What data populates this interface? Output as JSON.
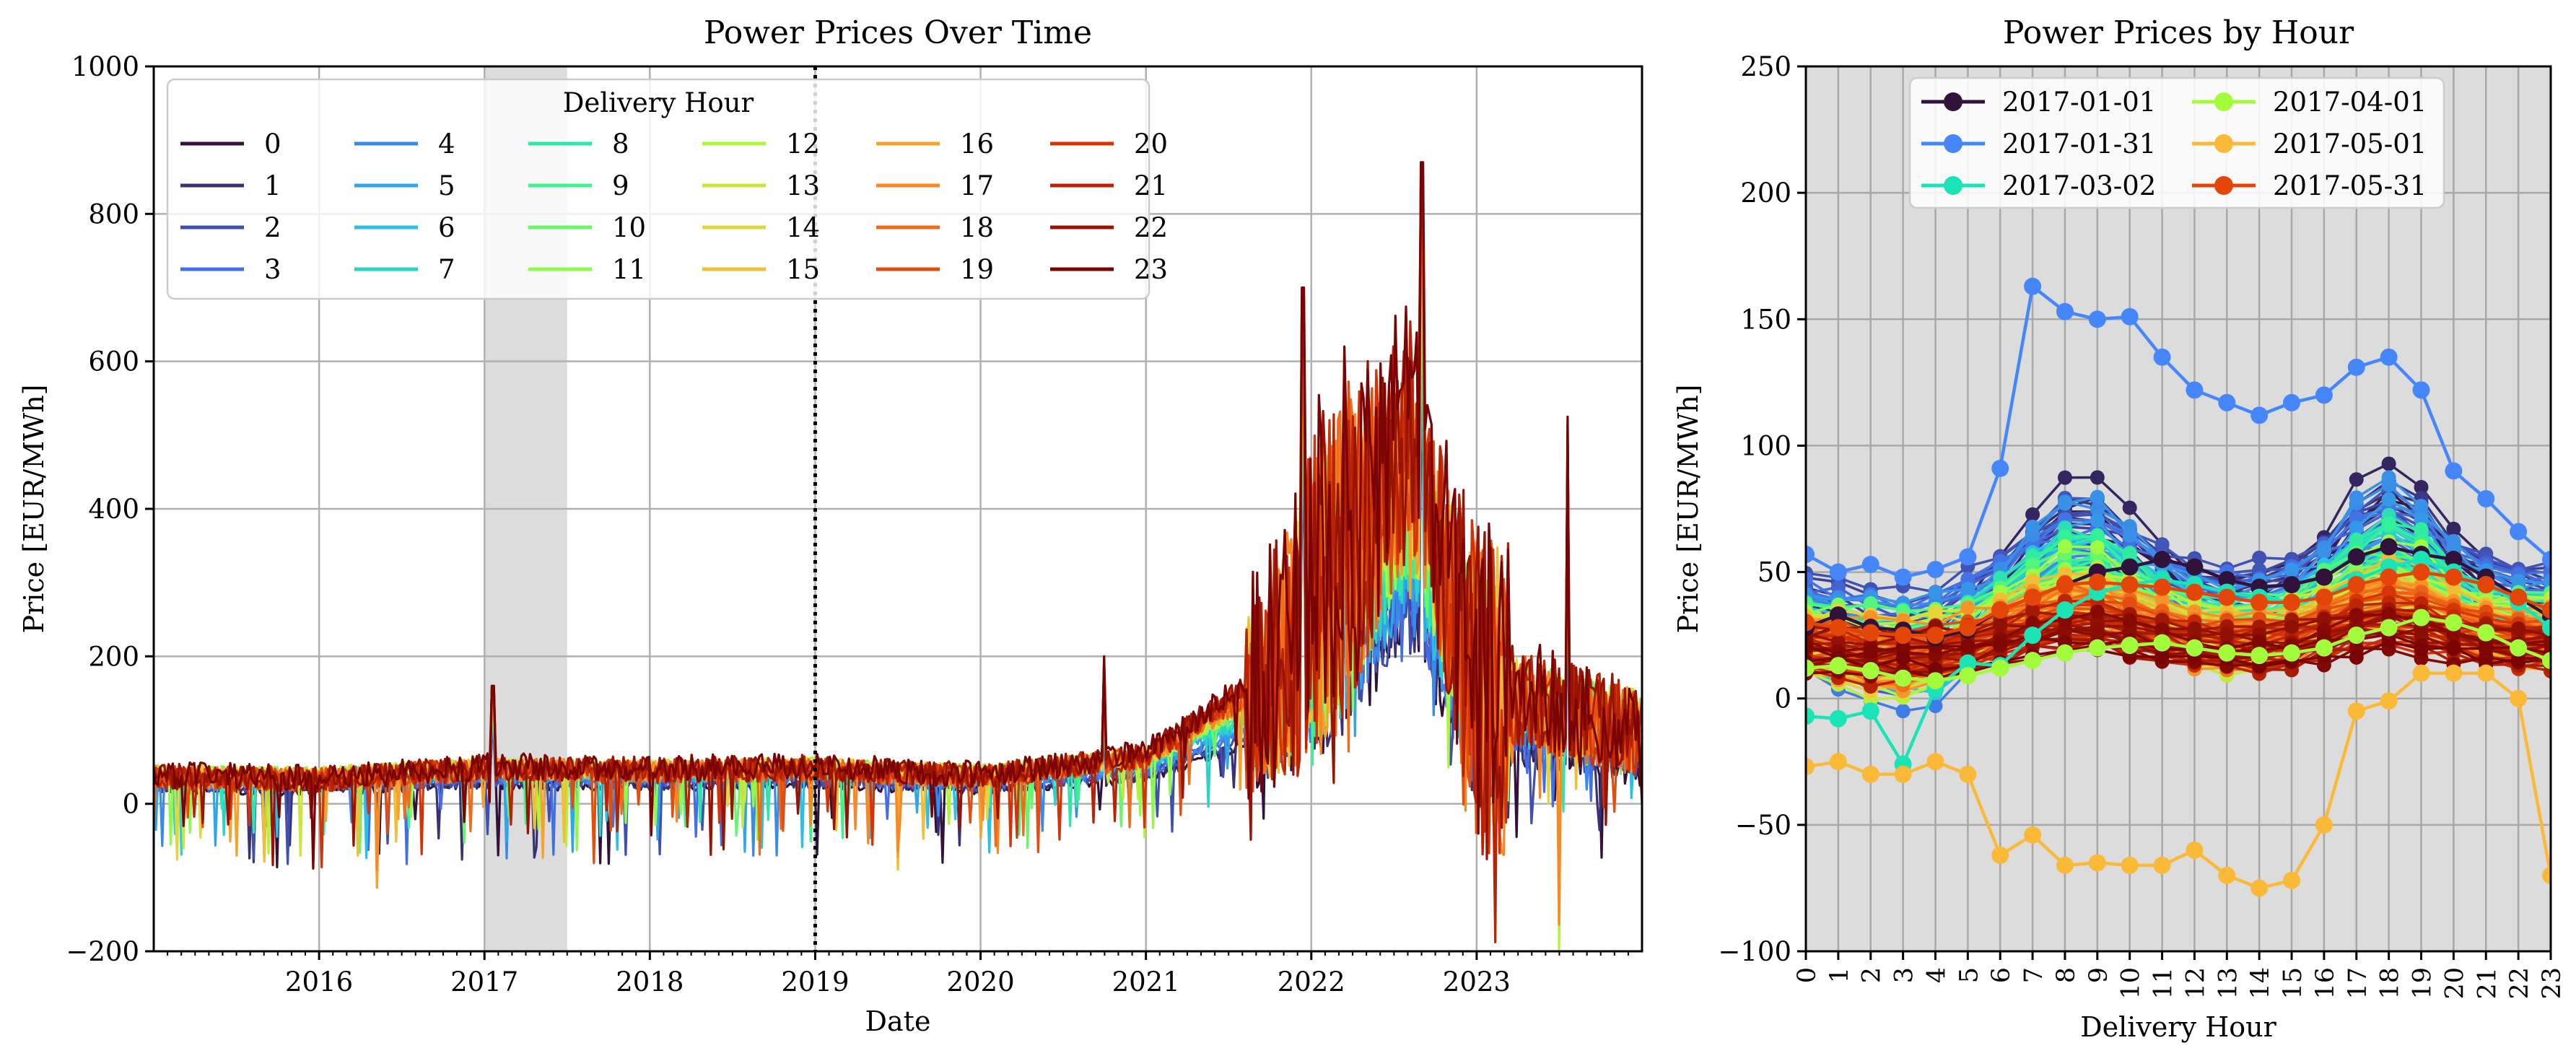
{
  "chart_data": [
    {
      "type": "line",
      "title": "Power Prices Over Time",
      "xlabel": "Date",
      "ylabel": "Price [EUR/MWh]",
      "xlim": [
        2015.0,
        2024.0
      ],
      "ylim": [
        -200,
        1000
      ],
      "yticks": [
        -200,
        0,
        200,
        400,
        600,
        800,
        1000
      ],
      "ytick_labels": [
        "−200",
        "0",
        "200",
        "400",
        "600",
        "800",
        "1000"
      ],
      "xticks": [
        2016,
        2017,
        2018,
        2019,
        2020,
        2021,
        2022,
        2023
      ],
      "xtick_labels": [
        "2016",
        "2017",
        "2018",
        "2019",
        "2020",
        "2021",
        "2022",
        "2023"
      ],
      "grid": true,
      "legend": {
        "title": "Delivery Hour",
        "placement": "top-left",
        "columns": 6,
        "entries": [
          "0",
          "1",
          "2",
          "3",
          "4",
          "5",
          "6",
          "7",
          "8",
          "9",
          "10",
          "11",
          "12",
          "13",
          "14",
          "15",
          "16",
          "17",
          "18",
          "19",
          "20",
          "21",
          "22",
          "23"
        ]
      },
      "shaded_span": {
        "from": 2017.0,
        "to": 2017.5
      },
      "vertical_line": {
        "x": 2019.0,
        "style": "dotted"
      },
      "series_profile": {
        "hours": [
          0,
          1,
          2,
          3,
          4,
          5,
          6,
          7,
          8,
          9,
          10,
          11,
          12,
          13,
          14,
          15,
          16,
          17,
          18,
          19,
          20,
          21,
          22,
          23
        ],
        "baseline_points": [
          [
            2015.0,
            35
          ],
          [
            2016.0,
            32
          ],
          [
            2017.0,
            45
          ],
          [
            2018.0,
            42
          ],
          [
            2019.0,
            45
          ],
          [
            2020.0,
            35
          ],
          [
            2021.0,
            60
          ],
          [
            2021.7,
            150
          ],
          [
            2022.0,
            250
          ],
          [
            2022.6,
            450
          ],
          [
            2023.0,
            150
          ],
          [
            2024.0,
            90
          ]
        ],
        "peaks": [
          {
            "x": 2022.67,
            "y": 870
          },
          {
            "x": 2021.95,
            "y": 700
          },
          {
            "x": 2022.2,
            "y": 620
          },
          {
            "x": 2023.55,
            "y": 525
          },
          {
            "x": 2017.05,
            "y": 160
          },
          {
            "x": 2020.75,
            "y": 200
          }
        ],
        "troughs": [
          {
            "x": 2023.5,
            "y": -200
          },
          {
            "x": 2016.35,
            "y": -130
          },
          {
            "x": 2019.5,
            "y": -90
          }
        ]
      }
    },
    {
      "type": "line",
      "title": "Power Prices by Hour",
      "xlabel": "Delivery Hour",
      "ylabel": "Price [EUR/MWh]",
      "xlim": [
        0,
        23
      ],
      "ylim": [
        -100,
        250
      ],
      "yticks": [
        -100,
        -50,
        0,
        50,
        100,
        150,
        200,
        250
      ],
      "ytick_labels": [
        "−100",
        "−50",
        "0",
        "50",
        "100",
        "150",
        "200",
        "250"
      ],
      "x": [
        0,
        1,
        2,
        3,
        4,
        5,
        6,
        7,
        8,
        9,
        10,
        11,
        12,
        13,
        14,
        15,
        16,
        17,
        18,
        19,
        20,
        21,
        22,
        23
      ],
      "xtick_labels": [
        "0",
        "1",
        "2",
        "3",
        "4",
        "5",
        "6",
        "7",
        "8",
        "9",
        "10",
        "11",
        "12",
        "13",
        "14",
        "15",
        "16",
        "17",
        "18",
        "19",
        "20",
        "21",
        "22",
        "23"
      ],
      "grid": true,
      "background": "#dcdcdc",
      "legend": {
        "placement": "top-center",
        "columns": 2
      },
      "series": [
        {
          "name": "2017-01-01",
          "color": "#30123b",
          "values": [
            28,
            33,
            28,
            27,
            24,
            27,
            35,
            40,
            45,
            50,
            52,
            55,
            52,
            47,
            44,
            45,
            48,
            56,
            60,
            57,
            55,
            48,
            40,
            32
          ]
        },
        {
          "name": "2017-01-31",
          "color": "#4686fb",
          "values": [
            57,
            50,
            53,
            48,
            51,
            56,
            91,
            163,
            153,
            150,
            151,
            135,
            122,
            117,
            112,
            117,
            120,
            131,
            135,
            122,
            90,
            79,
            66,
            55
          ]
        },
        {
          "name": "2017-03-02",
          "color": "#1ae4b6",
          "values": [
            -7,
            -8,
            -5,
            -26,
            4,
            14,
            13,
            25,
            35,
            42,
            45,
            47,
            45,
            42,
            40,
            38,
            40,
            47,
            52,
            55,
            50,
            45,
            38,
            28
          ]
        },
        {
          "name": "2017-04-01",
          "color": "#a2fc3c",
          "values": [
            12,
            13,
            11,
            8,
            7,
            9,
            12,
            15,
            18,
            20,
            21,
            22,
            20,
            18,
            17,
            18,
            20,
            25,
            28,
            32,
            30,
            26,
            20,
            15
          ]
        },
        {
          "name": "2017-05-01",
          "color": "#fbb938",
          "values": [
            -27,
            -25,
            -30,
            -30,
            -25,
            -30,
            -62,
            -54,
            -66,
            -65,
            -66,
            -66,
            -60,
            -70,
            -75,
            -72,
            -50,
            -5,
            -1,
            10,
            10,
            10,
            0,
            -70
          ]
        },
        {
          "name": "2017-05-31",
          "color": "#e4460a",
          "values": [
            30,
            28,
            26,
            25,
            25,
            28,
            35,
            40,
            45,
            46,
            45,
            44,
            42,
            40,
            38,
            38,
            40,
            45,
            48,
            50,
            48,
            45,
            40,
            35
          ]
        }
      ],
      "background_series_count": 180
    }
  ]
}
